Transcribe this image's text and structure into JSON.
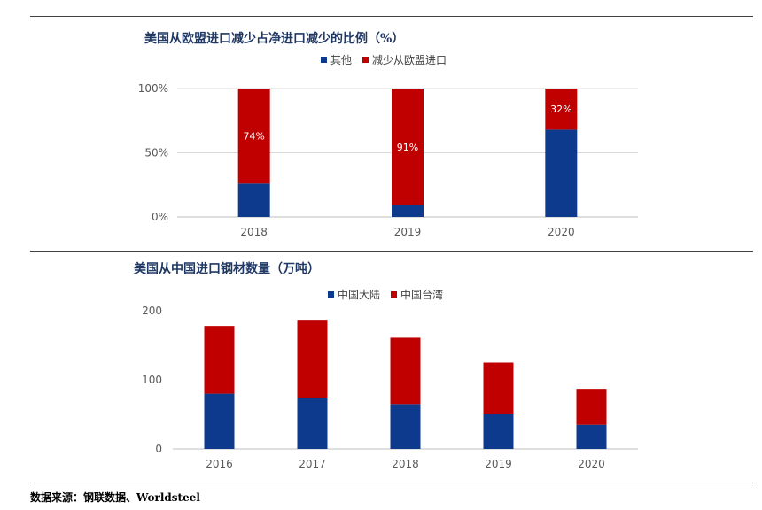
{
  "colors": {
    "blue": "#0d3a8c",
    "red": "#c00000",
    "grid": "#d9d9d9",
    "axis": "#bfbfbf"
  },
  "chart_data": [
    {
      "type": "bar",
      "stacked": true,
      "title": "美国从欧盟进口减少占净进口减少的比例（%）",
      "categories": [
        "2018",
        "2019",
        "2020"
      ],
      "series": [
        {
          "name": "其他",
          "values": [
            26,
            9,
            68
          ],
          "color": "#0d3a8c"
        },
        {
          "name": "减少从欧盟进口",
          "values": [
            74,
            91,
            32
          ],
          "color": "#c00000",
          "labels": [
            "74%",
            "91%",
            "32%"
          ]
        }
      ],
      "yticks": [
        "0%",
        "50%",
        "100%"
      ],
      "ylim": [
        0,
        100
      ],
      "grid": true,
      "legend": "top-right"
    },
    {
      "type": "bar",
      "stacked": true,
      "title": "美国从中国进口钢材数量（万吨）",
      "categories": [
        "2016",
        "2017",
        "2018",
        "2019",
        "2020"
      ],
      "series": [
        {
          "name": "中国大陆",
          "values": [
            80,
            74,
            65,
            50,
            35
          ],
          "color": "#0d3a8c"
        },
        {
          "name": "中国台湾",
          "values": [
            98,
            113,
            96,
            75,
            52
          ],
          "color": "#c00000"
        }
      ],
      "yticks": [
        "0",
        "100",
        "200"
      ],
      "ylim": [
        0,
        200
      ],
      "grid": false,
      "legend": "top-center"
    }
  ],
  "source": "数据来源：钢联数据、Worldsteel"
}
